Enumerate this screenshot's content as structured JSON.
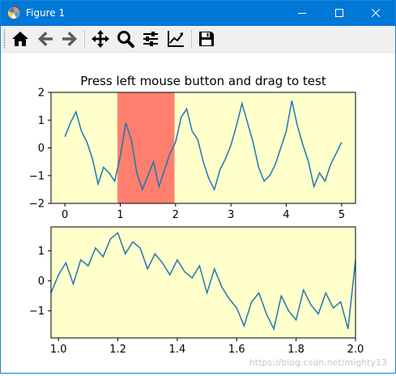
{
  "window": {
    "title": "Figure 1",
    "titlebar_color": "#0078d7"
  },
  "toolbar": {
    "items": [
      {
        "name": "home",
        "icon": "home-icon"
      },
      {
        "name": "back",
        "icon": "back-arrow-icon"
      },
      {
        "name": "forward",
        "icon": "forward-arrow-icon"
      },
      {
        "name": "pan",
        "icon": "move-icon"
      },
      {
        "name": "zoom",
        "icon": "magnifier-icon"
      },
      {
        "name": "configure-subplots",
        "icon": "sliders-icon"
      },
      {
        "name": "edit-axes",
        "icon": "line-chart-icon"
      },
      {
        "name": "save",
        "icon": "floppy-disk-icon"
      }
    ]
  },
  "chart_data": [
    {
      "type": "line",
      "title": "Press left mouse button and drag to test",
      "xlim": [
        -0.25,
        5.25
      ],
      "ylim": [
        -2,
        2
      ],
      "xticks": [
        "0",
        "1",
        "2",
        "3",
        "4",
        "5"
      ],
      "yticks": [
        "2",
        "1",
        "0",
        "−1",
        "−2"
      ],
      "background": "#ffffcc",
      "line_color": "#1f77b4",
      "selection_span": {
        "x": [
          0.95,
          1.98
        ],
        "color": "#ff7f6e"
      },
      "series": [
        {
          "x": [
            0.0,
            0.1,
            0.2,
            0.3,
            0.4,
            0.5,
            0.6,
            0.7,
            0.8,
            0.9,
            1.0,
            1.1,
            1.2,
            1.3,
            1.4,
            1.5,
            1.6,
            1.7,
            1.8,
            1.9,
            2.0,
            2.1,
            2.2,
            2.3,
            2.4,
            2.5,
            2.6,
            2.7,
            2.8,
            2.9,
            3.0,
            3.1,
            3.2,
            3.3,
            3.4,
            3.5,
            3.6,
            3.7,
            3.8,
            3.9,
            4.0,
            4.1,
            4.2,
            4.3,
            4.4,
            4.5,
            4.6,
            4.7,
            4.8,
            4.9,
            5.0
          ],
          "values": [
            0.4,
            0.9,
            1.3,
            0.6,
            0.2,
            -0.4,
            -1.3,
            -0.7,
            -0.9,
            -1.2,
            -0.3,
            0.9,
            0.3,
            -0.9,
            -1.5,
            -1.0,
            -0.5,
            -1.4,
            -0.8,
            -0.2,
            0.2,
            1.1,
            1.4,
            0.6,
            0.3,
            -0.5,
            -1.1,
            -1.5,
            -0.8,
            -0.4,
            0.1,
            0.8,
            1.6,
            0.9,
            0.2,
            -0.7,
            -1.2,
            -1.0,
            -0.6,
            0.0,
            0.6,
            1.7,
            0.8,
            0.1,
            -0.5,
            -1.4,
            -0.9,
            -1.2,
            -0.6,
            -0.2,
            0.2
          ]
        }
      ]
    },
    {
      "type": "line",
      "xlim": [
        0.975,
        2.0
      ],
      "ylim": [
        -1.9,
        1.8
      ],
      "xticks": [
        "1.0",
        "1.2",
        "1.4",
        "1.6",
        "1.8",
        "2.0"
      ],
      "yticks": [
        "1",
        "0",
        "−1"
      ],
      "background": "#ffffcc",
      "line_color": "#1f77b4",
      "series": [
        {
          "x": [
            0.975,
            1.0,
            1.025,
            1.05,
            1.075,
            1.1,
            1.125,
            1.15,
            1.175,
            1.2,
            1.225,
            1.25,
            1.275,
            1.3,
            1.325,
            1.35,
            1.375,
            1.4,
            1.425,
            1.45,
            1.475,
            1.5,
            1.525,
            1.55,
            1.575,
            1.6,
            1.625,
            1.65,
            1.675,
            1.7,
            1.725,
            1.75,
            1.775,
            1.8,
            1.825,
            1.85,
            1.875,
            1.9,
            1.925,
            1.95,
            1.975,
            2.0
          ],
          "values": [
            -0.4,
            0.2,
            0.6,
            -0.1,
            0.7,
            0.5,
            1.1,
            0.8,
            1.4,
            1.6,
            0.9,
            1.3,
            1.1,
            0.4,
            0.9,
            0.6,
            0.2,
            0.7,
            0.3,
            0.1,
            0.5,
            -0.4,
            0.4,
            -0.2,
            -0.6,
            -0.9,
            -1.5,
            -0.7,
            -0.4,
            -1.1,
            -1.6,
            -0.5,
            -1.0,
            -1.3,
            -0.3,
            -0.8,
            -1.1,
            -0.4,
            -0.9,
            -0.7,
            -1.6,
            0.7
          ]
        }
      ]
    }
  ],
  "watermark": "https://blog.csdn.net/mighty13"
}
